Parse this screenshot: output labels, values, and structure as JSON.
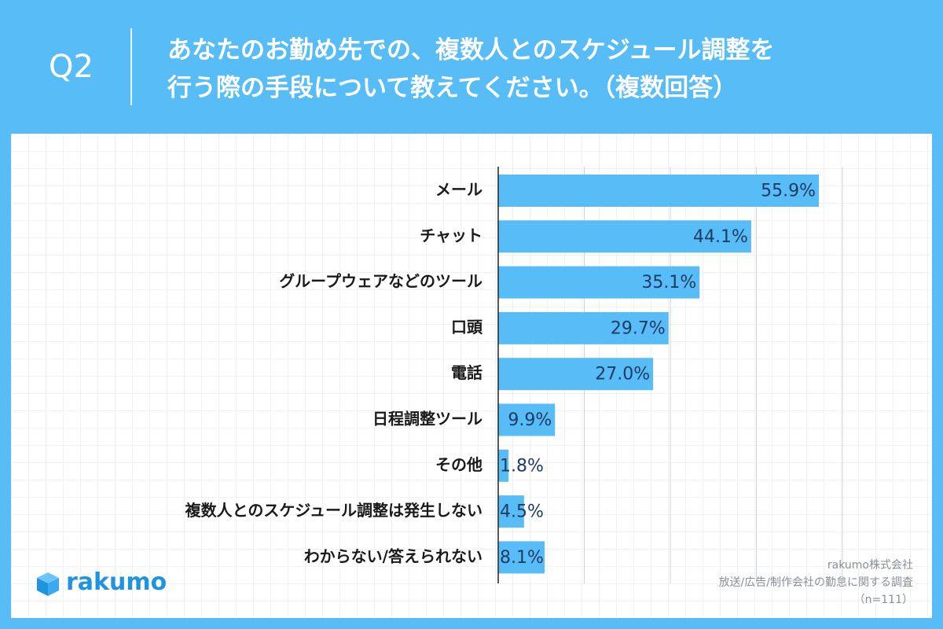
{
  "header": {
    "question_number": "Q2",
    "question_line1": "あなたのお勤め先での、複数人とのスケジュール調整を",
    "question_line2": "行う際の手段について教えてください。（複数回答）"
  },
  "brand": {
    "name": "rakumo"
  },
  "source": {
    "company": "rakumo株式会社",
    "survey": "放送/広告/制作会社の勤怠に関する調査",
    "sample": "（n=111）"
  },
  "colors": {
    "background": "#58bdf6",
    "bar": "#58bdf6",
    "value_text": "#1d3b66",
    "brand": "#1e93df"
  },
  "icons": {
    "logo": "rakumo-cube-icon"
  },
  "chart_data": {
    "type": "bar",
    "orientation": "horizontal",
    "categories": [
      "メール",
      "チャット",
      "グループウェアなどのツール",
      "口頭",
      "電話",
      "日程調整ツール",
      "その他",
      "複数人とのスケジュール調整は発生しない",
      "わからない/答えられない"
    ],
    "values": [
      55.9,
      44.1,
      35.1,
      29.7,
      27.0,
      9.9,
      1.8,
      4.5,
      8.1
    ],
    "value_labels": [
      "55.9%",
      "44.1%",
      "35.1%",
      "29.7%",
      "27.0%",
      "9.9%",
      "1.8%",
      "4.5%",
      "8.1%"
    ],
    "xlim": [
      0,
      60
    ],
    "grid": true,
    "title": "",
    "xlabel": "",
    "ylabel": ""
  }
}
